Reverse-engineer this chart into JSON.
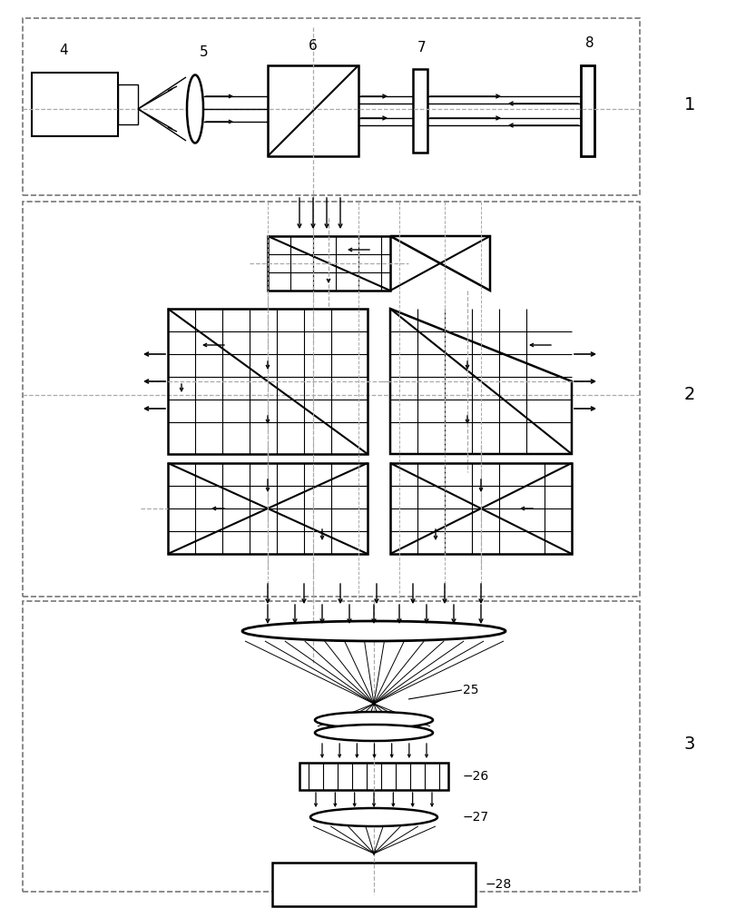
{
  "fig_width": 8.12,
  "fig_height": 10.0,
  "dpi": 100,
  "bg_color": "#ffffff",
  "line_color": "#000000",
  "dash_color": "#aaaaaa"
}
